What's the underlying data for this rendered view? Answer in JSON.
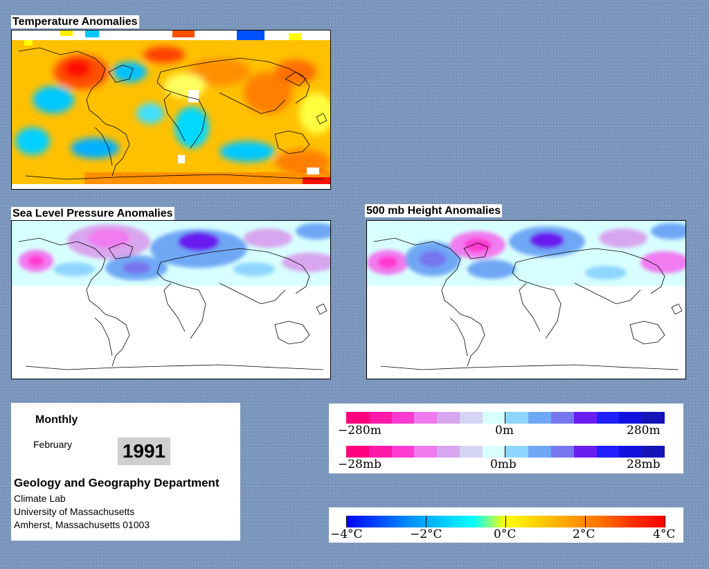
{
  "panels": {
    "temperature": {
      "title": "Temperature Anomalies"
    },
    "slp": {
      "title": "Sea Level Pressure Anomalies"
    },
    "height500": {
      "title": "500 mb Height Anomalies"
    }
  },
  "info": {
    "period": "Monthly",
    "month": "February",
    "year": "1991",
    "department": "Geology and Geography Department",
    "lab": "Climate Lab",
    "university": "University of Massachusetts",
    "address": "Amherst, Massachusetts 01003"
  },
  "legends": {
    "height": {
      "min": "−280m",
      "mid": "0m",
      "max": "280m"
    },
    "pressure": {
      "min": "−28mb",
      "mid": "0mb",
      "max": "28mb"
    },
    "temperature": {
      "labels": [
        "−4°C",
        "−2°C",
        "0°C",
        "2°C",
        "4°C"
      ]
    }
  },
  "colors": {
    "background": "#7b97bd",
    "anomaly_scale": [
      "#ff007f",
      "#ff19a8",
      "#ff3bd2",
      "#f07bef",
      "#d8a6ee",
      "#d6d4f4",
      "#d8ffff",
      "#8ed5ff",
      "#6fa7f5",
      "#7676ef",
      "#6b1ef0",
      "#2020ff",
      "#1212e0",
      "#1414b8"
    ],
    "temperature_scale": [
      "#0000ff",
      "#0048ff",
      "#0090ff",
      "#00c8ff",
      "#00ffff",
      "#ffff00",
      "#ffd000",
      "#ffa000",
      "#ff7000",
      "#ff3000",
      "#ff0000"
    ]
  }
}
